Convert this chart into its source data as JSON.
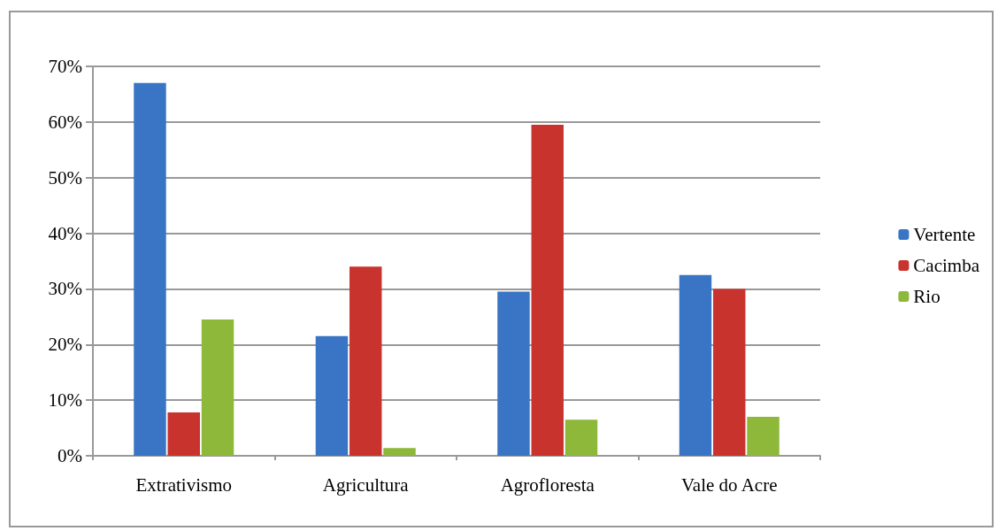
{
  "chart_data": {
    "type": "bar",
    "categories": [
      "Extrativismo",
      "Agricultura",
      "Agrofloresta",
      "Vale do Acre"
    ],
    "series": [
      {
        "name": "Vertente",
        "color": "#3a74c4",
        "values": [
          67,
          21.5,
          29.5,
          32.5
        ]
      },
      {
        "name": "Cacimba",
        "color": "#c8332e",
        "values": [
          7.8,
          34,
          59.5,
          30
        ]
      },
      {
        "name": "Rio",
        "color": "#8db83a",
        "values": [
          24.5,
          1.4,
          6.5,
          7
        ]
      }
    ],
    "ylim": [
      0,
      70
    ],
    "yticks": [
      {
        "value": 0,
        "label": "0%"
      },
      {
        "value": 10,
        "label": "10%"
      },
      {
        "value": 20,
        "label": "20%"
      },
      {
        "value": 30,
        "label": "30%"
      },
      {
        "value": 40,
        "label": "40%"
      },
      {
        "value": 50,
        "label": "50%"
      },
      {
        "value": 60,
        "label": "60%"
      },
      {
        "value": 70,
        "label": "70%"
      }
    ],
    "grid": "y",
    "legend": "right"
  }
}
